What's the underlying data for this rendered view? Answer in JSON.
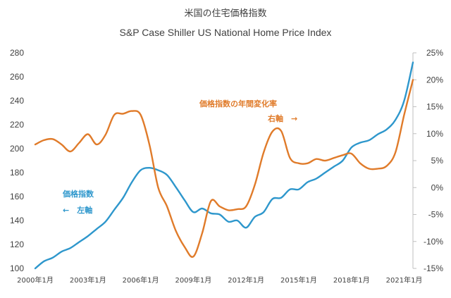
{
  "chart_data": {
    "type": "line",
    "title": "米国の住宅価格指数",
    "subtitle": "S&P Case Shiller US National Home Price Index",
    "x": [
      "2000-01",
      "2000-07",
      "2001-01",
      "2001-07",
      "2002-01",
      "2002-07",
      "2003-01",
      "2003-07",
      "2004-01",
      "2004-07",
      "2005-01",
      "2005-07",
      "2006-01",
      "2006-07",
      "2007-01",
      "2007-07",
      "2008-01",
      "2008-07",
      "2009-01",
      "2009-07",
      "2010-01",
      "2010-07",
      "2011-01",
      "2011-07",
      "2012-01",
      "2012-07",
      "2013-01",
      "2013-07",
      "2014-01",
      "2014-07",
      "2015-01",
      "2015-07",
      "2016-01",
      "2016-07",
      "2017-01",
      "2017-07",
      "2018-01",
      "2018-07",
      "2019-01",
      "2019-07",
      "2020-01",
      "2020-07",
      "2021-01",
      "2021-07"
    ],
    "x_tick_labels": [
      "2000年1月",
      "2003年1月",
      "2006年1月",
      "2009年1月",
      "2012年1月",
      "2015年1月",
      "2018年1月",
      "2021年1月"
    ],
    "x_tick_index": [
      0,
      6,
      12,
      18,
      24,
      30,
      36,
      42
    ],
    "series": [
      {
        "name": "価格指数",
        "axis": "left",
        "color": "#2E97CC",
        "values": [
          100,
          106,
          109,
          114,
          117,
          122,
          127,
          133,
          139,
          149,
          159,
          172,
          182,
          184,
          182,
          178,
          168,
          157,
          147,
          150,
          146,
          145,
          139,
          140,
          134,
          143,
          147,
          158,
          159,
          166,
          166,
          172,
          175,
          180,
          185,
          190,
          201,
          205,
          207,
          212,
          216,
          224,
          240,
          272
        ]
      },
      {
        "name": "価格指数の年間変化率",
        "axis": "right",
        "color": "#E07B2A",
        "values": [
          8.0,
          8.8,
          9.0,
          8.0,
          6.7,
          8.3,
          9.9,
          8.0,
          9.8,
          13.5,
          13.7,
          14.2,
          13.5,
          8.0,
          0.0,
          -3.5,
          -8.0,
          -11.0,
          -12.8,
          -8.5,
          -2.5,
          -3.5,
          -4.2,
          -4.0,
          -3.5,
          0.5,
          6.5,
          10.4,
          10.5,
          5.5,
          4.5,
          4.5,
          5.3,
          5.0,
          5.5,
          6.0,
          6.3,
          4.5,
          3.5,
          3.5,
          4.0,
          6.5,
          13.5,
          20.0
        ]
      }
    ],
    "y_left": {
      "ylim": [
        100,
        280
      ],
      "ticks": [
        "100",
        "120",
        "140",
        "160",
        "180",
        "200",
        "220",
        "240",
        "260",
        "280"
      ]
    },
    "y_right": {
      "ylim": [
        -15,
        25
      ],
      "ticks": [
        "-15%",
        "-10%",
        "-5%",
        "0%",
        "5%",
        "10%",
        "15%",
        "20%",
        "25%"
      ]
    },
    "annotations": {
      "orange_label": "価格指数の年間変化率",
      "orange_axis": "右軸　→",
      "blue_label": "価格指数",
      "blue_axis": "←　左軸"
    },
    "grid": false,
    "legend": "none"
  }
}
